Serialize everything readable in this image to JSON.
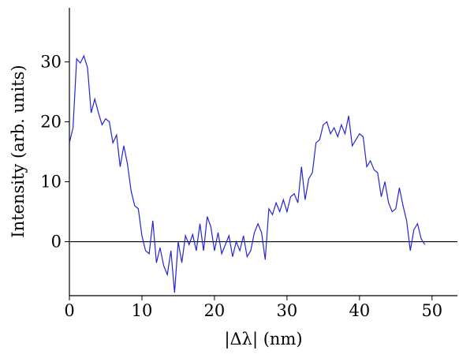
{
  "chart_data": {
    "type": "line",
    "xlabel": "|Δλ| (nm)",
    "ylabel": "Intensity (arb. units)",
    "x": [
      0,
      0.5,
      1,
      1.5,
      2,
      2.5,
      3,
      3.5,
      4,
      4.5,
      5,
      5.5,
      6,
      6.5,
      7,
      7.5,
      8,
      8.5,
      9,
      9.5,
      10,
      10.5,
      11,
      11.5,
      12,
      12.5,
      13,
      13.5,
      14,
      14.5,
      15,
      15.5,
      16,
      16.5,
      17,
      17.5,
      18,
      18.5,
      19,
      19.5,
      20,
      20.5,
      21,
      21.5,
      22,
      22.5,
      23,
      23.5,
      24,
      24.5,
      25,
      25.5,
      26,
      26.5,
      27,
      27.5,
      28,
      28.5,
      29,
      29.5,
      30,
      30.5,
      31,
      31.5,
      32,
      32.5,
      33,
      33.5,
      34,
      34.5,
      35,
      35.5,
      36,
      36.5,
      37,
      37.5,
      38,
      38.5,
      39,
      39.5,
      40,
      40.5,
      41,
      41.5,
      42,
      42.5,
      43,
      43.5,
      44,
      44.5,
      45,
      45.5,
      46,
      46.5,
      47,
      47.5,
      48,
      48.5,
      49
    ],
    "series": [
      {
        "color": "#2424d4",
        "values": [
          16.5,
          19,
          30.5,
          29.8,
          31,
          29,
          21.5,
          23.8,
          21.5,
          19.5,
          20.5,
          20,
          16.5,
          17.8,
          12.5,
          16,
          13,
          8.5,
          6,
          5.5,
          1,
          -1.5,
          -2,
          3.5,
          -3.5,
          -1,
          -4,
          -5.5,
          -1.5,
          -8.5,
          0,
          -3.5,
          1,
          -0.5,
          1.2,
          -1.5,
          3,
          -1.5,
          4.2,
          2.5,
          -1.5,
          1.5,
          -2,
          -0.5,
          1,
          -2.5,
          0,
          -1.5,
          1,
          -2.5,
          -1.5,
          1.5,
          3,
          1.5,
          -3,
          5.5,
          4.5,
          6.5,
          5,
          7,
          5,
          7.5,
          8,
          6.5,
          12.5,
          7,
          10.5,
          11.5,
          16.5,
          17,
          19.5,
          20,
          18,
          19,
          17.5,
          19.5,
          18,
          21,
          16,
          17,
          18,
          17.5,
          12.5,
          13.5,
          12,
          11.5,
          7.5,
          10,
          6.5,
          5,
          5.5,
          9,
          6,
          3.5,
          -1.5,
          2,
          3,
          0.5,
          -0.5
        ]
      }
    ],
    "xlim": [
      0,
      53.5
    ],
    "ylim": [
      -9,
      39
    ],
    "xticks": [
      0,
      10,
      20,
      30,
      40,
      50
    ],
    "yticks": [
      0,
      10,
      20,
      30
    ],
    "zero_line": true
  }
}
